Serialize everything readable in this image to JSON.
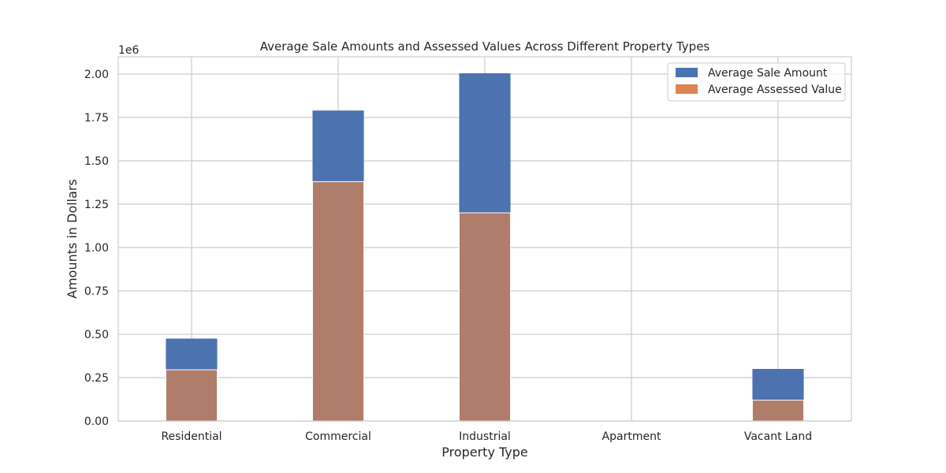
{
  "chart_data": {
    "type": "bar",
    "title": "Average Sale Amounts and Assessed Values Across Different Property Types",
    "xlabel": "Property Type",
    "ylabel": "Amounts in Dollars",
    "y_offset_label": "1e6",
    "categories": [
      "Residential",
      "Commercial",
      "Industrial",
      "Apartment",
      "Vacant Land"
    ],
    "series": [
      {
        "name": "Average Sale Amount",
        "values": [
          475000,
          1790000,
          2005000,
          0,
          300000
        ],
        "color": "#4c72b0"
      },
      {
        "name": "Average Assessed Value",
        "values": [
          295000,
          1380000,
          1200000,
          0,
          120000
        ],
        "color": "#dd8452"
      }
    ],
    "overlap_color": "#b07d6a",
    "ylim": [
      0,
      2100000
    ],
    "yticks": [
      0,
      250000,
      500000,
      750000,
      1000000,
      1250000,
      1500000,
      1750000,
      2000000
    ],
    "ytick_labels": [
      "0.00",
      "0.25",
      "0.50",
      "0.75",
      "1.00",
      "1.25",
      "1.50",
      "1.75",
      "2.00"
    ],
    "grid": true,
    "legend_position": "top-right"
  }
}
